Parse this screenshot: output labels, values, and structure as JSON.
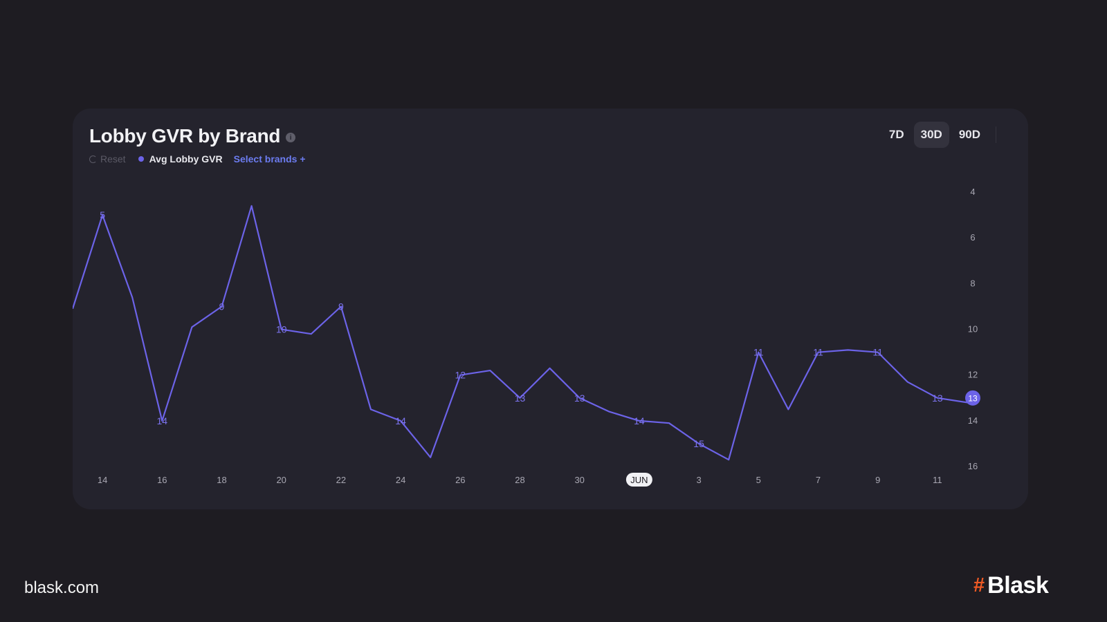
{
  "page": {
    "footer_url": "blask.com",
    "brand_name": "Blask",
    "brand_mark_icon": "hash-logo-icon",
    "brand_color": "#f05a24"
  },
  "card": {
    "title": "Lobby GVR by Brand",
    "info_icon": "info-icon",
    "reset_label": "Reset",
    "reset_icon": "reset-icon",
    "select_brands_label": "Select brands +",
    "range_tabs": [
      {
        "label": "7D",
        "active": false
      },
      {
        "label": "30D",
        "active": true
      },
      {
        "label": "90D",
        "active": false
      }
    ]
  },
  "chart_data": {
    "type": "line",
    "series": [
      {
        "name": "Avg Lobby GVR",
        "color": "#6c63e8",
        "points": [
          {
            "x": "May 13",
            "y": 9.1
          },
          {
            "x": "May 14",
            "y": 5
          },
          {
            "x": "May 15",
            "y": 8.6
          },
          {
            "x": "May 16",
            "y": 14
          },
          {
            "x": "May 17",
            "y": 9.9
          },
          {
            "x": "May 18",
            "y": 9
          },
          {
            "x": "May 19",
            "y": 4.6
          },
          {
            "x": "May 20",
            "y": 10
          },
          {
            "x": "May 21",
            "y": 10.2
          },
          {
            "x": "May 22",
            "y": 9
          },
          {
            "x": "May 23",
            "y": 13.5
          },
          {
            "x": "May 24",
            "y": 14
          },
          {
            "x": "May 25",
            "y": 15.6
          },
          {
            "x": "May 26",
            "y": 12
          },
          {
            "x": "May 27",
            "y": 11.8
          },
          {
            "x": "May 28",
            "y": 13
          },
          {
            "x": "May 29",
            "y": 11.7
          },
          {
            "x": "May 30",
            "y": 13
          },
          {
            "x": "May 31",
            "y": 13.6
          },
          {
            "x": "Jun 1",
            "y": 14
          },
          {
            "x": "Jun 2",
            "y": 14.1
          },
          {
            "x": "Jun 3",
            "y": 15
          },
          {
            "x": "Jun 4",
            "y": 15.7
          },
          {
            "x": "Jun 5",
            "y": 11
          },
          {
            "x": "Jun 6",
            "y": 13.5
          },
          {
            "x": "Jun 7",
            "y": 11
          },
          {
            "x": "Jun 8",
            "y": 10.9
          },
          {
            "x": "Jun 9",
            "y": 11
          },
          {
            "x": "Jun 10",
            "y": 12.3
          },
          {
            "x": "Jun 11",
            "y": 13
          },
          {
            "x": "Jun 12",
            "y": 13.2
          }
        ],
        "data_labels": [
          {
            "x": "May 14",
            "y": 5,
            "label": "5"
          },
          {
            "x": "May 16",
            "y": 14,
            "label": "14"
          },
          {
            "x": "May 18",
            "y": 9,
            "label": "9"
          },
          {
            "x": "May 20",
            "y": 10,
            "label": "10"
          },
          {
            "x": "May 22",
            "y": 9,
            "label": "9"
          },
          {
            "x": "May 24",
            "y": 14,
            "label": "14"
          },
          {
            "x": "May 26",
            "y": 12,
            "label": "12"
          },
          {
            "x": "May 28",
            "y": 13,
            "label": "13"
          },
          {
            "x": "May 30",
            "y": 13,
            "label": "13"
          },
          {
            "x": "Jun 1",
            "y": 14,
            "label": "14"
          },
          {
            "x": "Jun 3",
            "y": 15,
            "label": "15"
          },
          {
            "x": "Jun 5",
            "y": 11,
            "label": "11"
          },
          {
            "x": "Jun 7",
            "y": 11,
            "label": "11"
          },
          {
            "x": "Jun 9",
            "y": 11,
            "label": "11"
          },
          {
            "x": "Jun 11",
            "y": 13,
            "label": "13"
          }
        ]
      }
    ],
    "x_ticks": [
      {
        "x": "May 14",
        "label": "14"
      },
      {
        "x": "May 16",
        "label": "16"
      },
      {
        "x": "May 18",
        "label": "18"
      },
      {
        "x": "May 20",
        "label": "20"
      },
      {
        "x": "May 22",
        "label": "22"
      },
      {
        "x": "May 24",
        "label": "24"
      },
      {
        "x": "May 26",
        "label": "26"
      },
      {
        "x": "May 28",
        "label": "28"
      },
      {
        "x": "May 30",
        "label": "30"
      },
      {
        "x": "Jun 1",
        "label": "JUN",
        "highlight": true
      },
      {
        "x": "Jun 3",
        "label": "3"
      },
      {
        "x": "Jun 5",
        "label": "5"
      },
      {
        "x": "Jun 7",
        "label": "7"
      },
      {
        "x": "Jun 9",
        "label": "9"
      },
      {
        "x": "Jun 11",
        "label": "11"
      }
    ],
    "y_ticks": [
      "4",
      "6",
      "8",
      "10",
      "12",
      "14",
      "16"
    ],
    "y_axis": {
      "position": "right",
      "reversed": true,
      "ylim": [
        3,
        16.3
      ]
    },
    "current_value_badge": {
      "label": "13",
      "y": 13
    },
    "grid": false,
    "legend": "top-left"
  }
}
